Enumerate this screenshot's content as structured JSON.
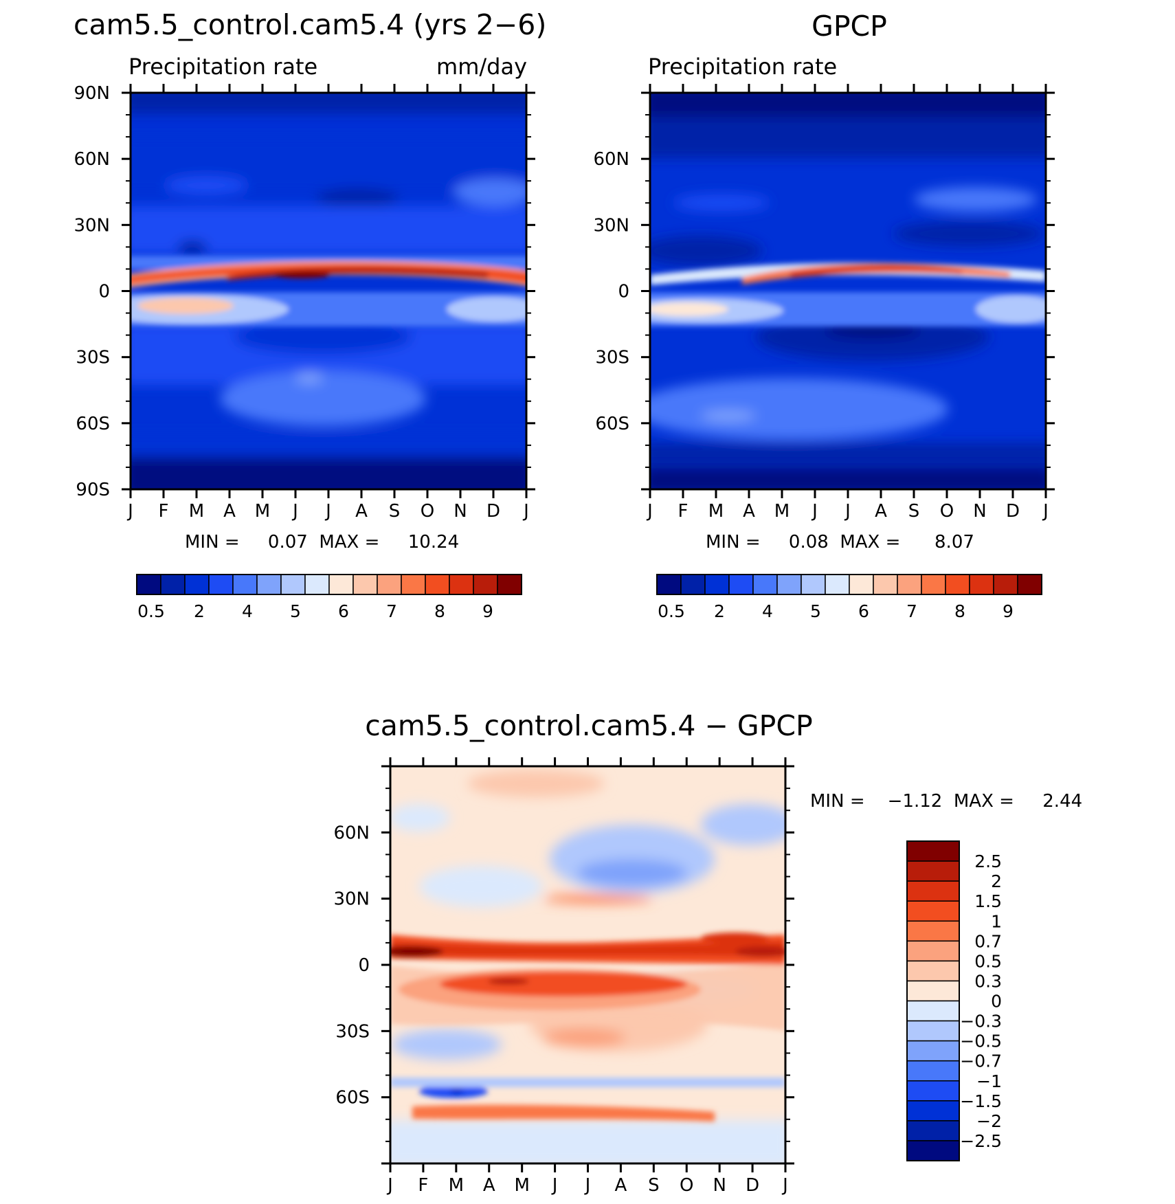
{
  "chart_data": [
    {
      "type": "heatmap",
      "title": "cam5.5_control.cam5.4 (yrs 2−6)",
      "subtitle_left": "Precipitation rate",
      "subtitle_right": "mm/day",
      "xlabel": "",
      "ylabel": "",
      "x_ticks": [
        "J",
        "F",
        "M",
        "A",
        "M",
        "J",
        "J",
        "A",
        "S",
        "O",
        "N",
        "D",
        "J"
      ],
      "y_range": [
        -90,
        90
      ],
      "y_ticks": [
        "90N",
        "60N",
        "30N",
        "0",
        "30S",
        "60S",
        "90S"
      ],
      "min_max_label": "MIN =     0.07  MAX =     10.24",
      "stats": {
        "min": 0.07,
        "max": 10.24
      },
      "colorbar_labels": [
        "0.5",
        "2",
        "4",
        "5",
        "6",
        "7",
        "8",
        "9"
      ],
      "colorbar_colors": [
        "#000a80",
        "#0021a8",
        "#0031d6",
        "#1e4cf4",
        "#4878fa",
        "#7fa3fb",
        "#b0c8fd",
        "#dbe9fd",
        "#fde8d8",
        "#fcc8ad",
        "#fba27e",
        "#fa7746",
        "#f24e20",
        "#dc3211",
        "#b81d0a",
        "#800000"
      ]
    },
    {
      "type": "heatmap",
      "title": "GPCP",
      "subtitle_left": "Precipitation rate",
      "x_ticks": [
        "J",
        "F",
        "M",
        "A",
        "M",
        "J",
        "J",
        "A",
        "S",
        "O",
        "N",
        "D",
        "J"
      ],
      "y_range": [
        -90,
        90
      ],
      "y_ticks": [
        "60N",
        "30N",
        "0",
        "30S",
        "60S"
      ],
      "min_max_label": "MIN =     0.08  MAX =      8.07",
      "stats": {
        "min": 0.08,
        "max": 8.07
      },
      "colorbar_labels": [
        "0.5",
        "2",
        "4",
        "5",
        "6",
        "7",
        "8",
        "9"
      ],
      "colorbar_colors": [
        "#000a80",
        "#0021a8",
        "#0031d6",
        "#1e4cf4",
        "#4878fa",
        "#7fa3fb",
        "#b0c8fd",
        "#dbe9fd",
        "#fde8d8",
        "#fcc8ad",
        "#fba27e",
        "#fa7746",
        "#f24e20",
        "#dc3211",
        "#b81d0a",
        "#800000"
      ]
    },
    {
      "type": "heatmap",
      "title": "cam5.5_control.cam5.4 − GPCP",
      "x_ticks": [
        "J",
        "F",
        "M",
        "A",
        "M",
        "J",
        "J",
        "A",
        "S",
        "O",
        "N",
        "D",
        "J"
      ],
      "y_range": [
        -90,
        90
      ],
      "y_ticks": [
        "60N",
        "30N",
        "0",
        "30S",
        "60S"
      ],
      "min_max_label": "MIN =    −1.12  MAX =     2.44",
      "stats": {
        "min": -1.12,
        "max": 2.44
      },
      "colorbar_labels": [
        "2.5",
        "2",
        "1.5",
        "1",
        "0.7",
        "0.5",
        "0.3",
        "0",
        "−0.3",
        "−0.5",
        "−0.7",
        "−1",
        "−1.5",
        "−2",
        "−2.5"
      ],
      "colorbar_colors": [
        "#800000",
        "#b81d0a",
        "#dc3211",
        "#f24e20",
        "#fa7746",
        "#fba27e",
        "#fcc8ad",
        "#fde8d8",
        "#dbe9fd",
        "#b0c8fd",
        "#7fa3fb",
        "#4878fa",
        "#1e4cf4",
        "#0031d6",
        "#0021a8",
        "#000a80"
      ]
    }
  ]
}
